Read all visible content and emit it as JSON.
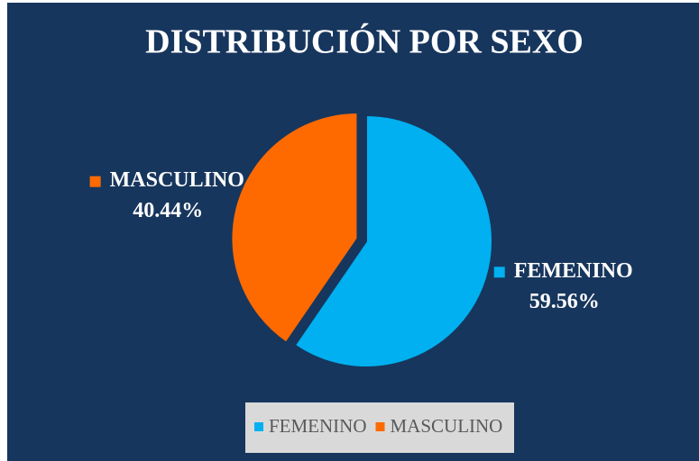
{
  "chart_data": {
    "type": "pie",
    "title": "DISTRIBUCIÓN POR SEXO",
    "categories": [
      "FEMENINO",
      "MASCULINO"
    ],
    "values": [
      59.56,
      40.44
    ],
    "value_labels": [
      "59.56%",
      "40.44%"
    ],
    "colors": [
      "#00b0f0",
      "#ff6a00"
    ],
    "legend": "bottom"
  }
}
